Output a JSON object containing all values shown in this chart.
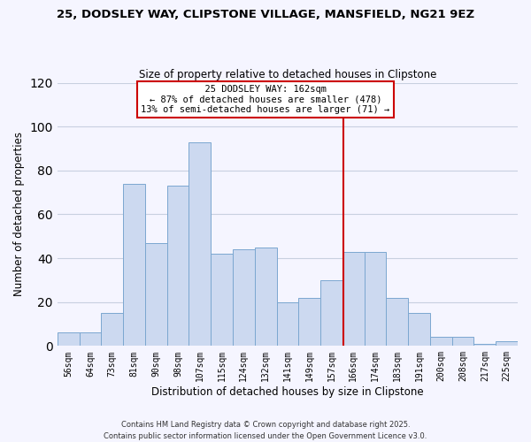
{
  "title1": "25, DODSLEY WAY, CLIPSTONE VILLAGE, MANSFIELD, NG21 9EZ",
  "title2": "Size of property relative to detached houses in Clipstone",
  "xlabel": "Distribution of detached houses by size in Clipstone",
  "ylabel": "Number of detached properties",
  "bar_labels": [
    "56sqm",
    "64sqm",
    "73sqm",
    "81sqm",
    "90sqm",
    "98sqm",
    "107sqm",
    "115sqm",
    "124sqm",
    "132sqm",
    "141sqm",
    "149sqm",
    "157sqm",
    "166sqm",
    "174sqm",
    "183sqm",
    "191sqm",
    "200sqm",
    "208sqm",
    "217sqm",
    "225sqm"
  ],
  "bar_values": [
    6,
    6,
    15,
    74,
    47,
    73,
    93,
    42,
    44,
    45,
    20,
    22,
    30,
    43,
    43,
    22,
    15,
    4,
    4,
    1,
    2
  ],
  "bar_color": "#ccd9f0",
  "bar_edge_color": "#7ba7d0",
  "grid_color": "#c8d0e0",
  "vline_label": "25 DODSLEY WAY: 162sqm",
  "annotation_line1": "← 87% of detached houses are smaller (478)",
  "annotation_line2": "13% of semi-detached houses are larger (71) →",
  "vline_color": "#cc0000",
  "box_edge_color": "#cc0000",
  "ylim": [
    0,
    120
  ],
  "yticks": [
    0,
    20,
    40,
    60,
    80,
    100,
    120
  ],
  "footer1": "Contains HM Land Registry data © Crown copyright and database right 2025.",
  "footer2": "Contains public sector information licensed under the Open Government Licence v3.0.",
  "bg_color": "#f5f5ff"
}
